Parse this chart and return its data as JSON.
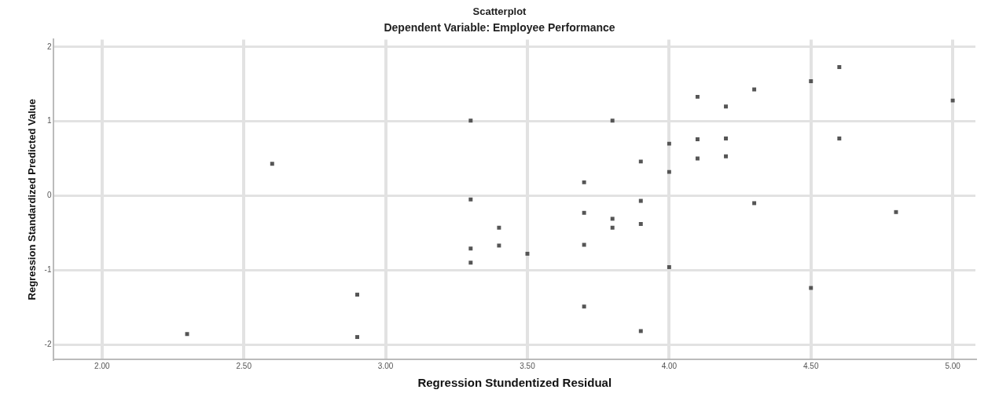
{
  "chart_data": {
    "type": "scatter",
    "title": "Scatterplot",
    "subtitle": "Dependent Variable: Employee Performance",
    "xlabel": "Regression Stundentized Residual",
    "ylabel": "Regression Standardized Predicted Value",
    "x": [
      2.3,
      2.6,
      2.9,
      2.9,
      3.3,
      3.3,
      3.3,
      3.3,
      3.4,
      3.4,
      3.5,
      3.7,
      3.7,
      3.7,
      3.7,
      3.8,
      3.8,
      3.8,
      3.9,
      3.9,
      3.9,
      3.9,
      4.0,
      4.0,
      4.0,
      4.1,
      4.1,
      4.1,
      4.2,
      4.2,
      4.2,
      4.3,
      4.3,
      4.5,
      4.5,
      4.6,
      4.6,
      4.8,
      5.0
    ],
    "values": [
      -1.86,
      0.43,
      -1.33,
      -1.9,
      1.01,
      -0.05,
      -0.71,
      -0.9,
      -0.43,
      -0.67,
      -0.78,
      0.18,
      -0.23,
      -0.66,
      -1.49,
      1.01,
      -0.31,
      -0.43,
      0.46,
      -0.07,
      -0.38,
      -1.82,
      0.7,
      0.32,
      -0.96,
      1.33,
      0.76,
      0.5,
      1.2,
      0.77,
      0.53,
      1.43,
      -0.1,
      1.54,
      -1.24,
      1.73,
      0.77,
      -0.22,
      1.28
    ],
    "color": "#555555",
    "marker": "square",
    "xlim": [
      1.83,
      5.08
    ],
    "xticks": [
      {
        "value": 2,
        "label": "2.00"
      },
      {
        "value": 2.5,
        "label": "2.50"
      },
      {
        "value": 3,
        "label": "3.00"
      },
      {
        "value": 3.5,
        "label": "3.50"
      },
      {
        "value": 4,
        "label": "4.00"
      },
      {
        "value": 4.5,
        "label": "4.50"
      },
      {
        "value": 5,
        "label": "5.00"
      }
    ],
    "ylim": [
      -2.2,
      2.1
    ],
    "yticks": [
      -2,
      -1,
      0,
      1,
      2
    ],
    "grid": true
  }
}
